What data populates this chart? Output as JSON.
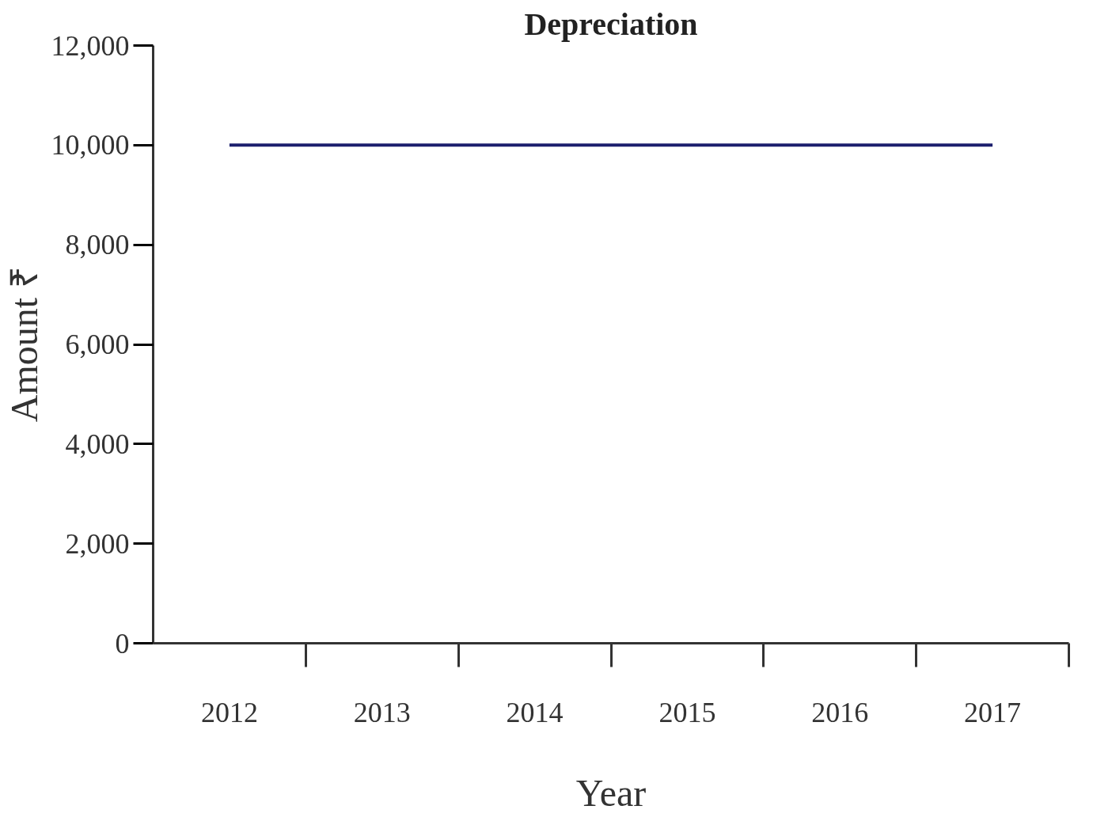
{
  "chart_data": {
    "type": "line",
    "title": "Depreciation",
    "xlabel": "Year",
    "ylabel": "Amount ₹",
    "categories": [
      "2012",
      "2013",
      "2014",
      "2015",
      "2016",
      "2017"
    ],
    "series": [
      {
        "color": "#1c1f6e",
        "values": [
          10000,
          10000,
          10000,
          10000,
          10000,
          10000
        ]
      }
    ],
    "ylim": [
      0,
      12000
    ],
    "yticks": [
      0,
      {
        "value": 2000,
        "label": "2,000"
      },
      {
        "value": 4000,
        "label": "4,000"
      },
      {
        "value": 6000,
        "label": "6,000"
      },
      {
        "value": 8000,
        "label": "8,000"
      },
      {
        "value": 10000,
        "label": "10,000"
      },
      {
        "value": 12000,
        "label": "12,000"
      }
    ]
  }
}
